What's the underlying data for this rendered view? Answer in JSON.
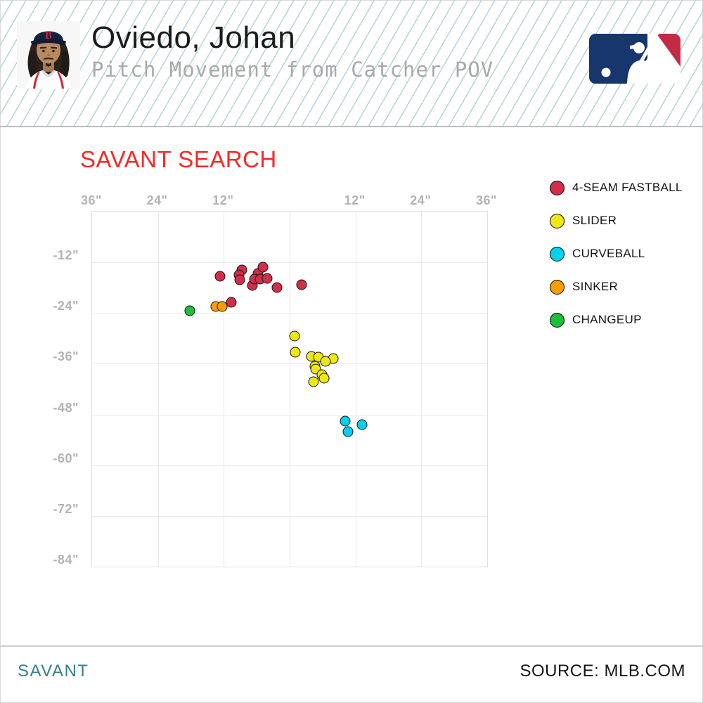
{
  "header": {
    "player_name": "Oviedo, Johan",
    "subtitle": "Pitch Movement from Catcher POV"
  },
  "search_title": "SAVANT SEARCH",
  "chart_data": {
    "type": "scatter",
    "title": "SAVANT SEARCH",
    "pov": "Pitch Movement from Catcher POV",
    "grid": true,
    "legend_position": "right",
    "x_axis": {
      "position": "top",
      "tick_labels": [
        "36\"",
        "24\"",
        "12\"",
        "",
        "12\"",
        "24\"",
        "36\""
      ],
      "range_inches": [
        -36,
        36
      ],
      "tick_step_inches": 12
    },
    "y_axis": {
      "tick_labels": [
        "-12\"",
        "-24\"",
        "-36\"",
        "-48\"",
        "-60\"",
        "-72\"",
        "-84\""
      ],
      "range_inches": [
        0,
        -84
      ],
      "tick_step_inches": 12
    },
    "series": [
      {
        "name": "4-SEAM FASTBALL",
        "color": "#D22D49",
        "points": [
          [
            -12.7,
            -15.3
          ],
          [
            -8.7,
            -13.8
          ],
          [
            -9.2,
            -15.0
          ],
          [
            -9.1,
            -16.1
          ],
          [
            -6.8,
            -17.5
          ],
          [
            -5.8,
            -14.6
          ],
          [
            -6.4,
            -16.0
          ],
          [
            -5.4,
            -16.0
          ],
          [
            -4.9,
            -13.1
          ],
          [
            -4.1,
            -15.8
          ],
          [
            -2.3,
            -18.0
          ],
          [
            2.2,
            -17.3
          ],
          [
            -10.6,
            -21.5
          ]
        ]
      },
      {
        "name": "SLIDER",
        "color": "#EEE716",
        "points": [
          [
            0.9,
            -29.4
          ],
          [
            1.0,
            -33.3
          ],
          [
            4.0,
            -34.3
          ],
          [
            5.3,
            -34.4
          ],
          [
            7.9,
            -34.8
          ],
          [
            6.5,
            -35.4
          ],
          [
            4.6,
            -36.6
          ],
          [
            4.7,
            -37.3
          ],
          [
            5.9,
            -38.6
          ],
          [
            6.3,
            -39.4
          ],
          [
            4.4,
            -40.3
          ]
        ]
      },
      {
        "name": "CURVEBALL",
        "color": "#00D1ED",
        "points": [
          [
            10.1,
            -49.6
          ],
          [
            13.2,
            -50.4
          ],
          [
            10.6,
            -52.1
          ]
        ]
      },
      {
        "name": "SINKER",
        "color": "#FE9D00",
        "points": [
          [
            -13.5,
            -22.5
          ],
          [
            -12.3,
            -22.5
          ]
        ]
      },
      {
        "name": "CHANGEUP",
        "color": "#1DBE3A",
        "points": [
          [
            -18.2,
            -23.5
          ]
        ]
      }
    ]
  },
  "footer": {
    "brand": "SAVANT",
    "source": "SOURCE: MLB.COM"
  },
  "colors": {
    "accent_red": "#f52a28",
    "brand_teal": "#337f8d",
    "header_stripe": "#b5d5d8",
    "axis_label": "#b3b3b3",
    "mlb_navy": "#17366d",
    "mlb_red": "#c32a44"
  }
}
